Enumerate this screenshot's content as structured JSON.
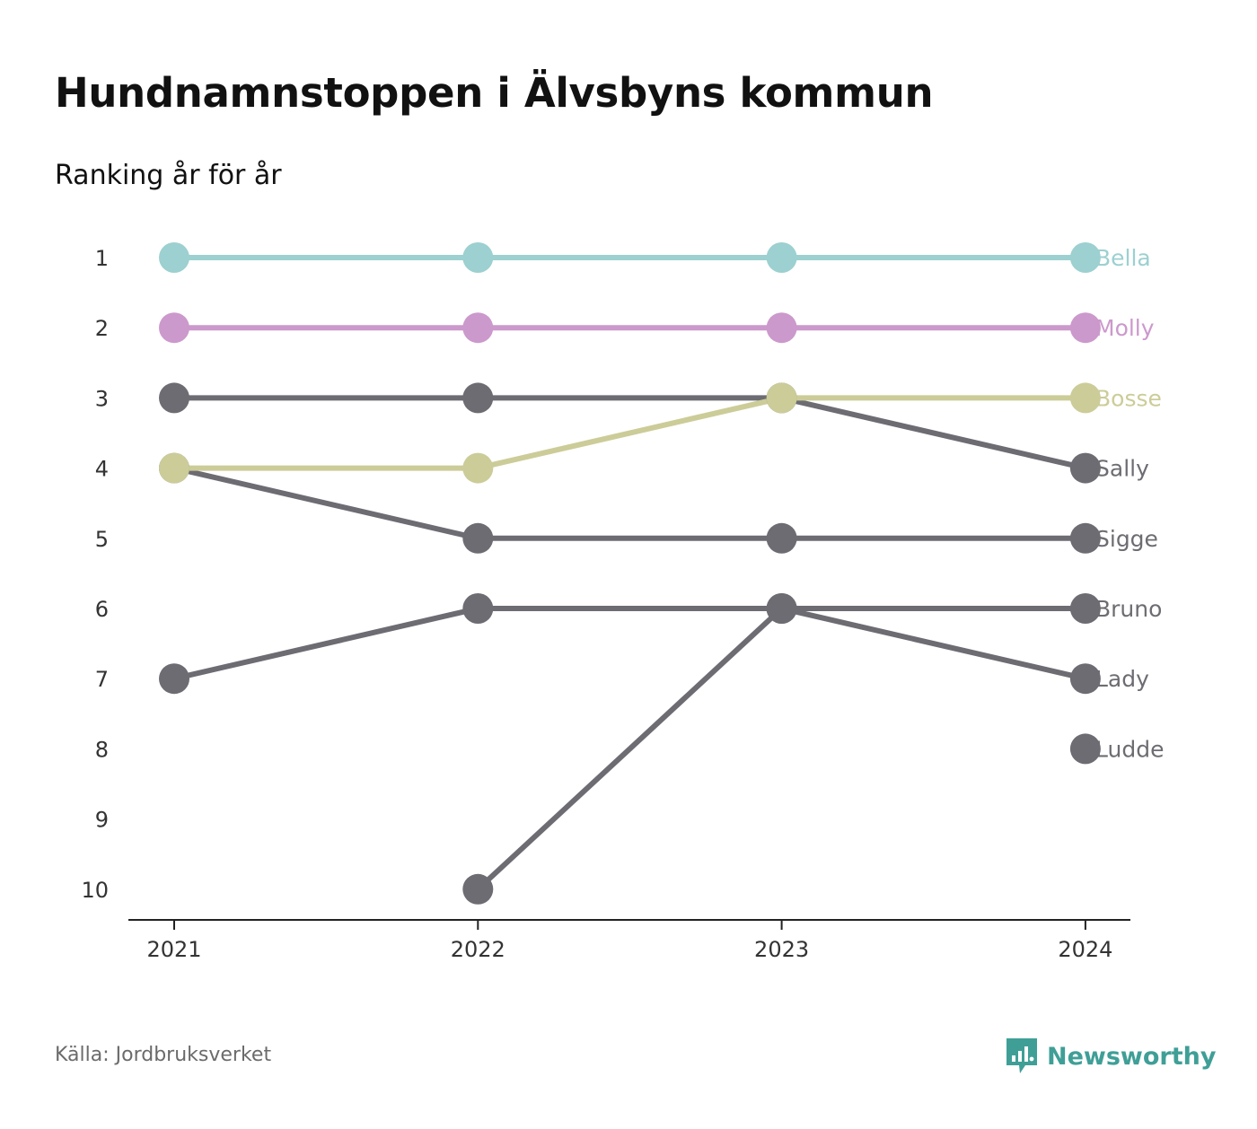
{
  "title": "Hundnamnstoppen i Älvsbyns kommun",
  "subtitle": "Ranking år för år",
  "source": "Källa: Jordbruksverket",
  "brand": {
    "name": "Newsworthy",
    "icon": "newsworthy-logo-icon",
    "color": "#3f9f97"
  },
  "chart_data": {
    "type": "line",
    "subtype": "bump",
    "x": [
      "2021",
      "2022",
      "2023",
      "2024"
    ],
    "y_ticks": [
      1,
      2,
      3,
      4,
      5,
      6,
      7,
      8,
      9,
      10
    ],
    "ylim": [
      1,
      10
    ],
    "y_inverted": true,
    "grid": false,
    "legend": "direct-labels-right",
    "series": [
      {
        "name": "Bella",
        "color": "#9dd0d0",
        "values": [
          1,
          1,
          1,
          1
        ]
      },
      {
        "name": "Molly",
        "color": "#cc99cc",
        "values": [
          2,
          2,
          2,
          2
        ]
      },
      {
        "name": "Bosse",
        "color": "#cccc99",
        "values": [
          4,
          4,
          3,
          3
        ]
      },
      {
        "name": "Sally",
        "color": "#6d6c72",
        "values": [
          3,
          3,
          3,
          4
        ]
      },
      {
        "name": "Sigge",
        "color": "#6d6c72",
        "values": [
          4,
          5,
          5,
          5
        ]
      },
      {
        "name": "Bruno",
        "color": "#6d6c72",
        "values": [
          null,
          10,
          6,
          6
        ]
      },
      {
        "name": "Lady",
        "color": "#6d6c72",
        "values": [
          7,
          6,
          6,
          7
        ]
      },
      {
        "name": "Ludde",
        "color": "#6d6c72",
        "values": [
          null,
          null,
          null,
          8
        ]
      }
    ]
  }
}
